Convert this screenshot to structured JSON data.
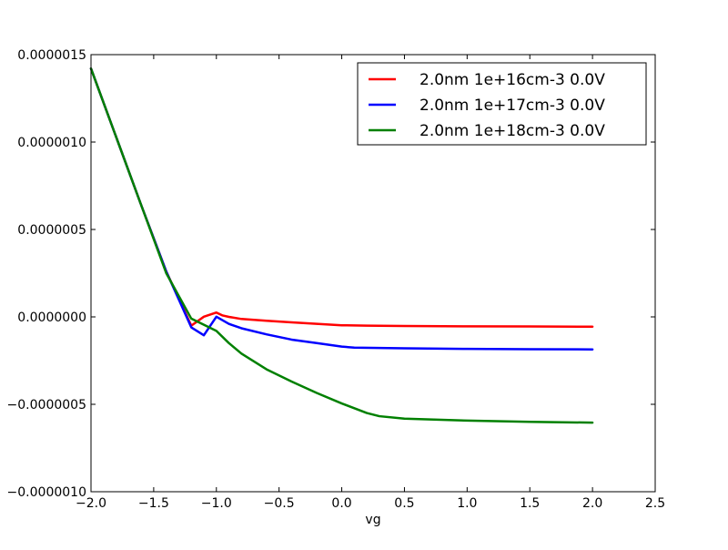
{
  "chart_data": {
    "type": "line",
    "title": "",
    "xlabel": "vg",
    "ylabel": "",
    "xlim": [
      -2.0,
      2.5
    ],
    "ylim": [
      -1e-06,
      1.5e-06
    ],
    "x_ticks": [
      -2.0,
      -1.5,
      -1.0,
      -0.5,
      0.0,
      0.5,
      1.0,
      1.5,
      2.0,
      2.5
    ],
    "x_tick_labels": [
      "−2.0",
      "−1.5",
      "−1.0",
      "−0.5",
      "0.0",
      "0.5",
      "1.0",
      "1.5",
      "2.0",
      "2.5"
    ],
    "y_ticks": [
      -1e-06,
      -5e-07,
      0.0,
      5e-07,
      1e-06,
      1.5e-06
    ],
    "y_tick_labels": [
      "−0.0000010",
      "−0.0000005",
      "0.0000000",
      "0.0000005",
      "0.0000010",
      "0.0000015"
    ],
    "grid": false,
    "legend_position": "top-right",
    "series": [
      {
        "name": "2.0nm 1e+16cm-3 0.0V",
        "color": "#ff0000",
        "x": [
          -2.0,
          -1.8,
          -1.6,
          -1.4,
          -1.2,
          -1.1,
          -1.0,
          -0.95,
          -0.9,
          -0.8,
          -0.6,
          -0.4,
          -0.2,
          0.0,
          0.2,
          0.5,
          1.0,
          1.5,
          2.0
        ],
        "y": [
          1.42e-06,
          1.03e-06,
          6.4e-07,
          2.6e-07,
          -5e-08,
          1e-09,
          2.5e-08,
          8e-09,
          0.0,
          -1.2e-08,
          -2.2e-08,
          -3.1e-08,
          -4e-08,
          -4.8e-08,
          -5e-08,
          -5.2e-08,
          -5.4e-08,
          -5.5e-08,
          -5.6e-08
        ]
      },
      {
        "name": "2.0nm 1e+17cm-3 0.0V",
        "color": "#0000ff",
        "x": [
          -2.0,
          -1.8,
          -1.6,
          -1.4,
          -1.2,
          -1.1,
          -1.0,
          -0.9,
          -0.8,
          -0.6,
          -0.4,
          -0.2,
          0.0,
          0.1,
          0.3,
          0.5,
          1.0,
          1.5,
          2.0
        ],
        "y": [
          1.42e-06,
          1.03e-06,
          6.4e-07,
          2.6e-07,
          -6e-08,
          -1.05e-07,
          1e-09,
          -4e-08,
          -6.5e-08,
          -1e-07,
          -1.3e-07,
          -1.5e-07,
          -1.7e-07,
          -1.76e-07,
          -1.78e-07,
          -1.8e-07,
          -1.83e-07,
          -1.85e-07,
          -1.86e-07
        ]
      },
      {
        "name": "2.0nm 1e+18cm-3 0.0V",
        "color": "#008000",
        "x": [
          -2.0,
          -1.8,
          -1.6,
          -1.4,
          -1.2,
          -1.0,
          -0.9,
          -0.8,
          -0.6,
          -0.4,
          -0.2,
          0.0,
          0.2,
          0.3,
          0.5,
          1.0,
          1.5,
          2.0
        ],
        "y": [
          1.42e-06,
          1.03e-06,
          6.4e-07,
          2.5e-07,
          -1e-08,
          -8e-08,
          -1.5e-07,
          -2.1e-07,
          -3e-07,
          -3.7e-07,
          -4.35e-07,
          -4.95e-07,
          -5.5e-07,
          -5.68e-07,
          -5.82e-07,
          -5.93e-07,
          -6e-07,
          -6.05e-07
        ]
      }
    ]
  }
}
